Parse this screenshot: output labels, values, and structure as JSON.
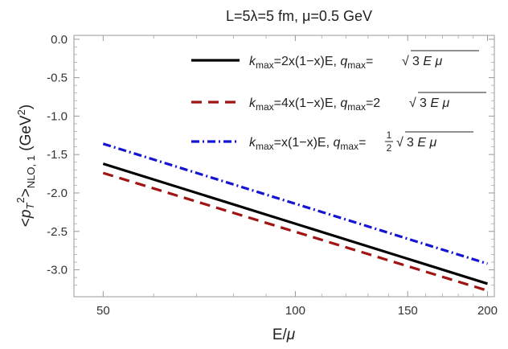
{
  "chart_data": {
    "type": "line",
    "title": "L=5λ=5 fm, μ=0.5 GeV",
    "xlabel": "E/μ",
    "ylabel": "<p_T^2>_NLO,1 (GeV^2)",
    "x_scale": "log",
    "xlim": [
      45,
      205
    ],
    "ylim": [
      -3.35,
      0.05
    ],
    "x_ticks": [
      50,
      100,
      150,
      200
    ],
    "y_ticks": [
      0.0,
      -0.5,
      -1.0,
      -1.5,
      -2.0,
      -2.5,
      -3.0
    ],
    "x_tick_labels": [
      "50",
      "100",
      "150",
      "200"
    ],
    "y_tick_labels": [
      "0.0",
      "-0.5",
      "-1.0",
      "-1.5",
      "-2.0",
      "-2.5",
      "-3.0"
    ],
    "grid": false,
    "legend_position": "top-right",
    "series": [
      {
        "name": "k_max=2x(1−x)E, q_max=√(3Eμ)",
        "style": "solid",
        "color": "#000000",
        "x": [
          50,
          200
        ],
        "values": [
          -1.62,
          -3.18
        ]
      },
      {
        "name": "k_max=4x(1−x)E, q_max=2√(3Eμ)",
        "style": "dashed",
        "color": "#a01414",
        "x": [
          50,
          200
        ],
        "values": [
          -1.74,
          -3.27
        ]
      },
      {
        "name": "k_max=x(1−x)E, q_max=½√(3Eμ)",
        "style": "dashdot",
        "color": "#1414d2",
        "x": [
          50,
          200
        ],
        "values": [
          -1.36,
          -2.92
        ]
      }
    ]
  }
}
